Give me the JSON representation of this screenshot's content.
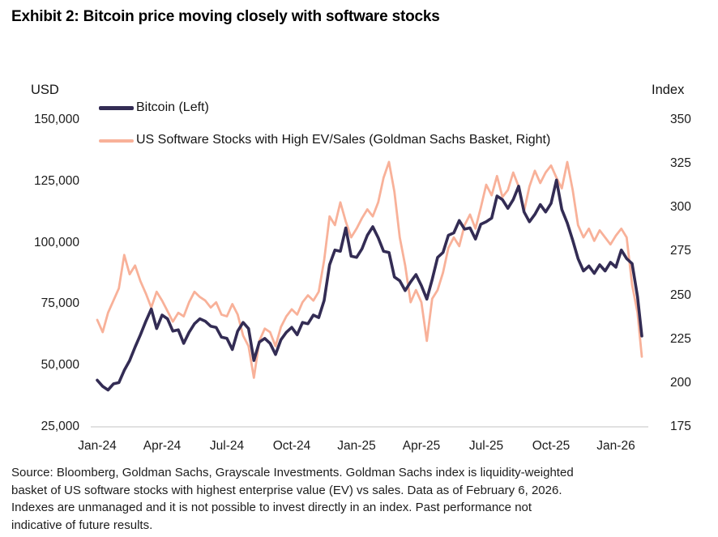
{
  "page": {
    "title": "Exhibit 2: Bitcoin price moving closely with software stocks"
  },
  "chart": {
    "colors": {
      "bitcoin": "#332C54",
      "software": "#F8B199",
      "axis_line": "#cfcfcf",
      "text": "#1b1b1b"
    },
    "legend": [
      {
        "label": "Bitcoin (Left)",
        "series": "bitcoin"
      },
      {
        "label": "US Software Stocks with High EV/Sales (Goldman Sachs Basket, Right)",
        "series": "software"
      }
    ]
  },
  "chart_data": {
    "type": "line",
    "title": "Exhibit 2: Bitcoin price moving closely with software stocks",
    "left_axis": {
      "label": "USD",
      "min": 25000,
      "max": 150000,
      "ticks": [
        {
          "label": "150,000",
          "value": 150000
        },
        {
          "label": "125,000",
          "value": 125000
        },
        {
          "label": "100,000",
          "value": 100000
        },
        {
          "label": "75,000",
          "value": 75000
        },
        {
          "label": "50,000",
          "value": 50000
        },
        {
          "label": "25,000",
          "value": 25000
        }
      ]
    },
    "right_axis": {
      "label": "Index",
      "min": 175,
      "max": 350,
      "ticks": [
        {
          "label": "350",
          "value": 350
        },
        {
          "label": "325",
          "value": 325
        },
        {
          "label": "300",
          "value": 300
        },
        {
          "label": "275",
          "value": 275
        },
        {
          "label": "250",
          "value": 250
        },
        {
          "label": "225",
          "value": 225
        },
        {
          "label": "200",
          "value": 200
        },
        {
          "label": "175",
          "value": 175
        }
      ]
    },
    "x_axis": {
      "unit": "months since Jan-2024",
      "ticks": [
        {
          "label": "Jan-24",
          "month": 0
        },
        {
          "label": "Apr-24",
          "month": 3
        },
        {
          "label": "Jul-24",
          "month": 6
        },
        {
          "label": "Oct-24",
          "month": 9
        },
        {
          "label": "Jan-25",
          "month": 12
        },
        {
          "label": "Apr-25",
          "month": 15
        },
        {
          "label": "Jul-25",
          "month": 18
        },
        {
          "label": "Oct-25",
          "month": 21
        },
        {
          "label": "Jan-26",
          "month": 24
        }
      ]
    },
    "grid": false,
    "legend_position": "top-left",
    "x": [
      0,
      0.25,
      0.5,
      0.75,
      1,
      1.25,
      1.5,
      1.75,
      2,
      2.25,
      2.5,
      2.75,
      3,
      3.25,
      3.5,
      3.75,
      4,
      4.25,
      4.5,
      4.75,
      5,
      5.25,
      5.5,
      5.75,
      6,
      6.25,
      6.5,
      6.75,
      7,
      7.25,
      7.5,
      7.75,
      8,
      8.25,
      8.5,
      8.75,
      9,
      9.25,
      9.5,
      9.75,
      10,
      10.25,
      10.5,
      10.75,
      11,
      11.25,
      11.5,
      11.75,
      12,
      12.25,
      12.5,
      12.75,
      13,
      13.25,
      13.5,
      13.75,
      14,
      14.25,
      14.5,
      14.75,
      15,
      15.25,
      15.5,
      15.75,
      16,
      16.25,
      16.5,
      16.75,
      17,
      17.25,
      17.5,
      17.75,
      18,
      18.25,
      18.5,
      18.75,
      19,
      19.25,
      19.5,
      19.75,
      20,
      20.25,
      20.5,
      20.75,
      21,
      21.25,
      21.5,
      21.75,
      22,
      22.25,
      22.5,
      22.75,
      23,
      23.25,
      23.5,
      23.75,
      24,
      24.25,
      24.5,
      24.75,
      25,
      25.2
    ],
    "series": [
      {
        "name": "Bitcoin (Left)",
        "axis": "left",
        "color": "#332C54",
        "values": [
          44000,
          41500,
          40000,
          42500,
          43000,
          48000,
          52000,
          57500,
          62500,
          68000,
          73000,
          65000,
          70500,
          69000,
          64000,
          64500,
          59000,
          63500,
          67000,
          69000,
          68000,
          66000,
          65500,
          61500,
          61000,
          56500,
          64000,
          67500,
          65000,
          52000,
          59500,
          61000,
          59000,
          54500,
          60500,
          63500,
          65500,
          62500,
          67500,
          67000,
          70500,
          69500,
          76500,
          91000,
          97000,
          96500,
          106000,
          94500,
          94000,
          97500,
          103000,
          106500,
          102000,
          96500,
          96000,
          86000,
          84500,
          80500,
          84000,
          87000,
          82500,
          77000,
          85000,
          94000,
          96000,
          103000,
          104000,
          109000,
          105500,
          106000,
          101500,
          107500,
          108500,
          110000,
          119000,
          117500,
          114000,
          117500,
          123000,
          112500,
          108500,
          111500,
          115500,
          112500,
          116000,
          125500,
          113500,
          108000,
          101000,
          93500,
          88500,
          90500,
          87500,
          91000,
          88500,
          92000,
          90000,
          97000,
          93500,
          91500,
          78000,
          62000
        ]
      },
      {
        "name": "US Software Stocks with High EV/Sales (Goldman Sachs Basket, Right)",
        "axis": "right",
        "color": "#F8B199",
        "values": [
          236,
          229,
          240,
          247,
          254,
          273,
          262,
          267,
          258,
          251,
          243,
          252,
          247,
          241,
          235,
          240,
          238,
          246,
          252,
          249,
          247,
          243,
          246,
          239,
          238,
          245,
          239,
          227,
          221,
          203,
          224,
          231,
          229,
          221,
          232,
          238,
          242,
          239,
          246,
          250,
          247,
          252,
          270,
          295,
          290,
          303,
          292,
          283,
          288,
          294,
          299,
          295,
          303,
          317,
          326,
          309,
          283,
          267,
          246,
          253,
          246,
          224,
          248,
          253,
          263,
          277,
          283,
          278,
          290,
          296,
          288,
          300,
          313,
          307,
          318,
          306,
          310,
          320,
          312,
          298,
          312,
          321,
          314,
          320,
          324,
          317,
          311,
          326,
          310,
          290,
          283,
          288,
          281,
          287,
          283,
          279,
          284,
          288,
          283,
          256,
          240,
          215
        ]
      }
    ]
  },
  "footer": {
    "lines": [
      "Source: Bloomberg, Goldman Sachs, Grayscale Investments. Goldman Sachs index is liquidity-weighted",
      "basket of US software stocks with highest enterprise value (EV) vs sales. Data as of February 6, 2026.",
      "Indexes are unmanaged and it is not possible to invest directly in an index. Past performance not",
      "indicative of future results."
    ]
  }
}
